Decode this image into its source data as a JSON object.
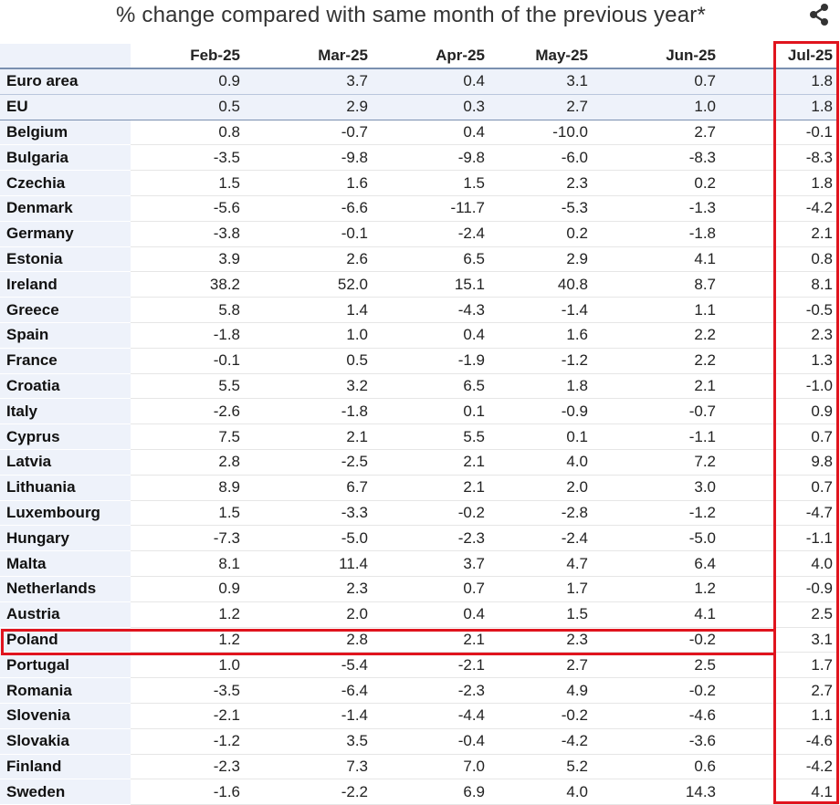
{
  "title": "% change compared with same month of the previous year*",
  "share_icon": "share-icon",
  "highlight_color": "#e0141e",
  "columns": [
    "Feb-25",
    "Mar-25",
    "Apr-25",
    "May-25",
    "Jun-25",
    "Jul-25"
  ],
  "rows": [
    {
      "name": "Euro area",
      "values": [
        "0.9",
        "3.7",
        "0.4",
        "3.1",
        "0.7",
        "1.8"
      ]
    },
    {
      "name": "EU",
      "values": [
        "0.5",
        "2.9",
        "0.3",
        "2.7",
        "1.0",
        "1.8"
      ]
    },
    {
      "name": "Belgium",
      "values": [
        "0.8",
        "-0.7",
        "0.4",
        "-10.0",
        "2.7",
        "-0.1"
      ]
    },
    {
      "name": "Bulgaria",
      "values": [
        "-3.5",
        "-9.8",
        "-9.8",
        "-6.0",
        "-8.3",
        "-8.3"
      ]
    },
    {
      "name": "Czechia",
      "values": [
        "1.5",
        "1.6",
        "1.5",
        "2.3",
        "0.2",
        "1.8"
      ]
    },
    {
      "name": "Denmark",
      "values": [
        "-5.6",
        "-6.6",
        "-11.7",
        "-5.3",
        "-1.3",
        "-4.2"
      ]
    },
    {
      "name": "Germany",
      "values": [
        "-3.8",
        "-0.1",
        "-2.4",
        "0.2",
        "-1.8",
        "2.1"
      ]
    },
    {
      "name": "Estonia",
      "values": [
        "3.9",
        "2.6",
        "6.5",
        "2.9",
        "4.1",
        "0.8"
      ]
    },
    {
      "name": "Ireland",
      "values": [
        "38.2",
        "52.0",
        "15.1",
        "40.8",
        "8.7",
        "8.1"
      ]
    },
    {
      "name": "Greece",
      "values": [
        "5.8",
        "1.4",
        "-4.3",
        "-1.4",
        "1.1",
        "-0.5"
      ]
    },
    {
      "name": "Spain",
      "values": [
        "-1.8",
        "1.0",
        "0.4",
        "1.6",
        "2.2",
        "2.3"
      ]
    },
    {
      "name": "France",
      "values": [
        "-0.1",
        "0.5",
        "-1.9",
        "-1.2",
        "2.2",
        "1.3"
      ]
    },
    {
      "name": "Croatia",
      "values": [
        "5.5",
        "3.2",
        "6.5",
        "1.8",
        "2.1",
        "-1.0"
      ]
    },
    {
      "name": "Italy",
      "values": [
        "-2.6",
        "-1.8",
        "0.1",
        "-0.9",
        "-0.7",
        "0.9"
      ]
    },
    {
      "name": "Cyprus",
      "values": [
        "7.5",
        "2.1",
        "5.5",
        "0.1",
        "-1.1",
        "0.7"
      ]
    },
    {
      "name": "Latvia",
      "values": [
        "2.8",
        "-2.5",
        "2.1",
        "4.0",
        "7.2",
        "9.8"
      ]
    },
    {
      "name": "Lithuania",
      "values": [
        "8.9",
        "6.7",
        "2.1",
        "2.0",
        "3.0",
        "0.7"
      ]
    },
    {
      "name": "Luxembourg",
      "values": [
        "1.5",
        "-3.3",
        "-0.2",
        "-2.8",
        "-1.2",
        "-4.7"
      ]
    },
    {
      "name": "Hungary",
      "values": [
        "-7.3",
        "-5.0",
        "-2.3",
        "-2.4",
        "-5.0",
        "-1.1"
      ]
    },
    {
      "name": "Malta",
      "values": [
        "8.1",
        "11.4",
        "3.7",
        "4.7",
        "6.4",
        "4.0"
      ]
    },
    {
      "name": "Netherlands",
      "values": [
        "0.9",
        "2.3",
        "0.7",
        "1.7",
        "1.2",
        "-0.9"
      ]
    },
    {
      "name": "Austria",
      "values": [
        "1.2",
        "2.0",
        "0.4",
        "1.5",
        "4.1",
        "2.5"
      ]
    },
    {
      "name": "Poland",
      "values": [
        "1.2",
        "2.8",
        "2.1",
        "2.3",
        "-0.2",
        "3.1"
      ]
    },
    {
      "name": "Portugal",
      "values": [
        "1.0",
        "-5.4",
        "-2.1",
        "2.7",
        "2.5",
        "1.7"
      ]
    },
    {
      "name": "Romania",
      "values": [
        "-3.5",
        "-6.4",
        "-2.3",
        "4.9",
        "-0.2",
        "2.7"
      ]
    },
    {
      "name": "Slovenia",
      "values": [
        "-2.1",
        "-1.4",
        "-4.4",
        "-0.2",
        "-4.6",
        "1.1"
      ]
    },
    {
      "name": "Slovakia",
      "values": [
        "-1.2",
        "3.5",
        "-0.4",
        "-4.2",
        "-3.6",
        "-4.6"
      ]
    },
    {
      "name": "Finland",
      "values": [
        "-2.3",
        "7.3",
        "7.0",
        "5.2",
        "0.6",
        "-4.2"
      ]
    },
    {
      "name": "Sweden",
      "values": [
        "-1.6",
        "-2.2",
        "6.9",
        "4.0",
        "14.3",
        "4.1"
      ]
    }
  ]
}
